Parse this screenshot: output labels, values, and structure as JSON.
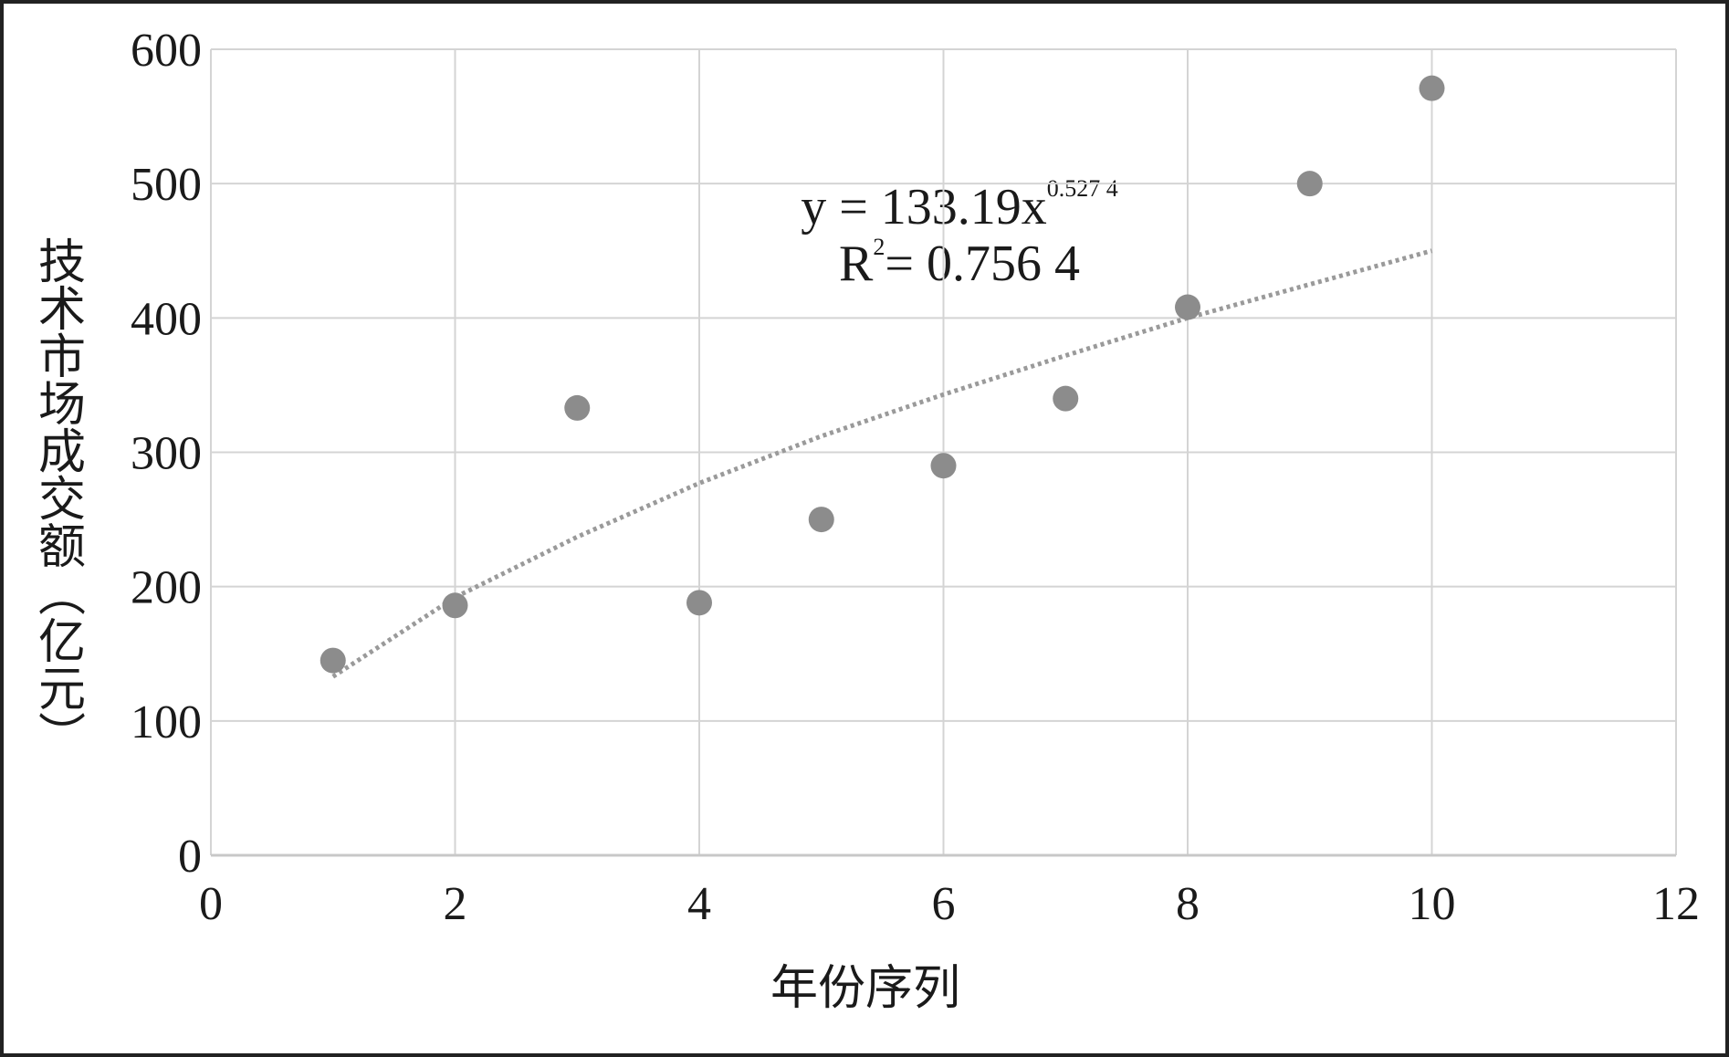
{
  "chart_data": {
    "type": "scatter",
    "x_label": "年份序列",
    "y_label": "技术市场成交额（亿元）",
    "annotation": {
      "line1": [
        "y = 133.19x",
        "0.527 4"
      ],
      "line2": [
        "R",
        "2",
        "= 0.756 4"
      ]
    },
    "x": [
      1,
      2,
      3,
      4,
      5,
      6,
      7,
      8,
      9,
      10
    ],
    "values": [
      145,
      186,
      333,
      188,
      250,
      290,
      340,
      408,
      500,
      571
    ],
    "color": "#8c8c8c",
    "trendline": {
      "x": [
        1,
        2,
        3,
        4,
        5,
        6,
        7,
        8,
        9,
        10
      ],
      "values": [
        133,
        192,
        237,
        277,
        312,
        343,
        372,
        400,
        425,
        450
      ],
      "color": "#9a9a9a",
      "style": "dotted"
    },
    "xlim": [
      0,
      12
    ],
    "xticks": [
      0,
      2,
      4,
      6,
      8,
      10,
      12
    ],
    "ylim": [
      0,
      600
    ],
    "yticks": [
      0,
      100,
      200,
      300,
      400,
      500,
      600
    ],
    "grid": true
  }
}
